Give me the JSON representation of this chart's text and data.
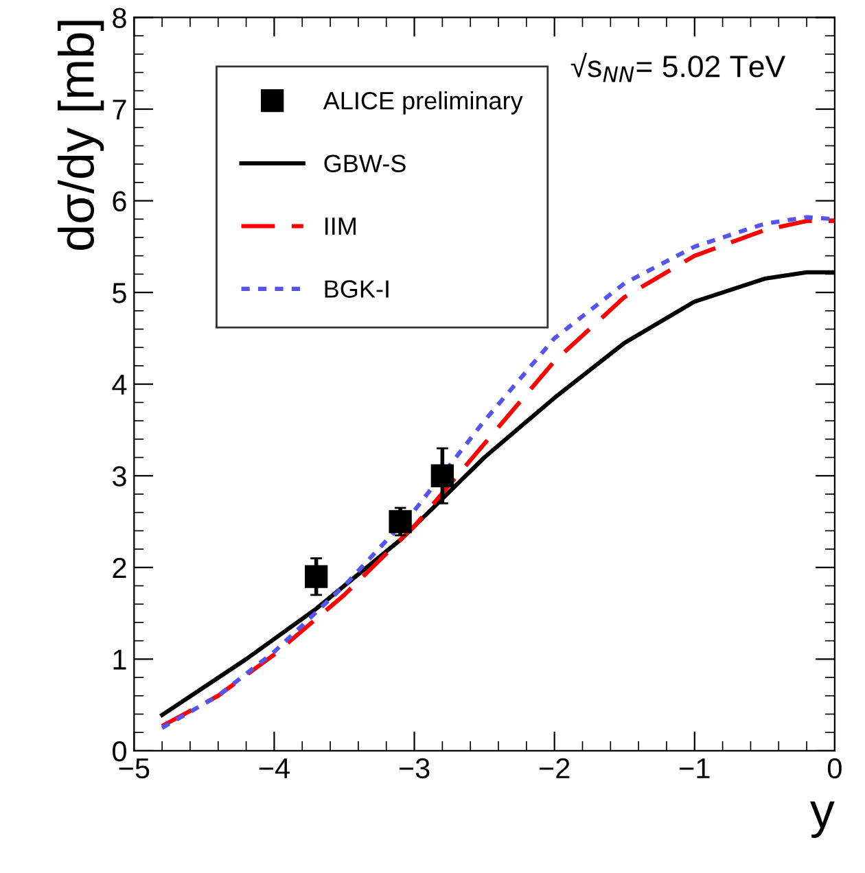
{
  "chart_data": {
    "type": "line",
    "xlabel": "y",
    "ylabel": "dσ/dy [mb]",
    "xlim": [
      -5,
      0
    ],
    "ylim": [
      0,
      8
    ],
    "xticks": [
      {
        "value": -5,
        "label": "−5"
      },
      {
        "value": -4,
        "label": "−4"
      },
      {
        "value": -3,
        "label": "−3"
      },
      {
        "value": -2,
        "label": "−2"
      },
      {
        "value": -1,
        "label": "−1"
      },
      0
    ],
    "yticks": [
      0,
      1,
      2,
      3,
      4,
      5,
      6,
      7,
      8
    ],
    "legend": "top left",
    "grid": false,
    "annotations": [
      "√s$_{NN}$= 5.02 TeV"
    ],
    "series": [
      {
        "name": "ALICE preliminary",
        "type": "scatter",
        "marker": "square",
        "color": "#000000",
        "x": [
          -3.7,
          -3.1,
          -2.8
        ],
        "values": [
          1.9,
          2.5,
          3.0
        ],
        "errors": [
          0.2,
          0.15,
          0.3
        ]
      },
      {
        "name": "GBW-S",
        "line_style": "solid",
        "color": "#000000",
        "x": [
          -4.8,
          -4.2,
          -3.7,
          -3.1,
          -2.5,
          -2,
          -1.5,
          -1,
          -0.5,
          -0.2,
          0
        ],
        "values": [
          0.39,
          1.0,
          1.55,
          2.3,
          3.2,
          3.85,
          4.45,
          4.9,
          5.15,
          5.22,
          5.22
        ]
      },
      {
        "name": "IIM",
        "line_style": "dashed",
        "color": "#ff0000",
        "x": [
          -4.8,
          -4.4,
          -4,
          -3.5,
          -3,
          -2.5,
          -2,
          -1.5,
          -1,
          -0.5,
          -0.2,
          0
        ],
        "values": [
          0.27,
          0.6,
          1.05,
          1.7,
          2.45,
          3.35,
          4.25,
          4.95,
          5.4,
          5.68,
          5.78,
          5.78
        ]
      },
      {
        "name": "BGK-I",
        "line_style": "dotted",
        "color": "#5555ee",
        "x": [
          -4.8,
          -4.4,
          -4,
          -3.5,
          -3,
          -2.5,
          -2,
          -1.5,
          -1,
          -0.5,
          -0.2,
          0
        ],
        "values": [
          0.25,
          0.6,
          1.08,
          1.8,
          2.62,
          3.6,
          4.5,
          5.1,
          5.5,
          5.75,
          5.82,
          5.8
        ]
      }
    ]
  }
}
